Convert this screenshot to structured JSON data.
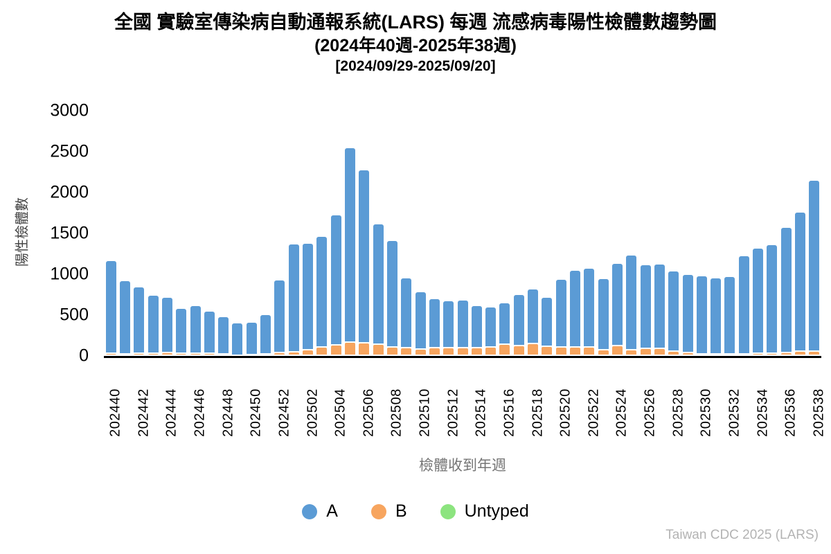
{
  "title": {
    "line1": "全國 實驗室傳染病自動通報系統(LARS) 每週 流感病毒陽性檢體數趨勢圖",
    "line2": "(2024年40週-2025年38週)",
    "line3": "[2024/09/29-2025/09/20]"
  },
  "footer": {
    "source": "Taiwan CDC 2025 (LARS)"
  },
  "chart_data": {
    "type": "bar",
    "stacked": true,
    "title": "全國 實驗室傳染病自動通報系統(LARS) 每週 流感病毒陽性檢體數趨勢圖 (2024年40週-2025年38週) [2024/09/29-2025/09/20]",
    "xlabel": "檢體收到年週",
    "ylabel": "陽性檢體數",
    "ylim": [
      0,
      3000
    ],
    "yticks": [
      0,
      500,
      1000,
      1500,
      2000,
      2500,
      3000
    ],
    "grid": false,
    "legend_position": "bottom",
    "x_tick_label_every": 2,
    "categories": [
      "202440",
      "202441",
      "202442",
      "202443",
      "202444",
      "202445",
      "202446",
      "202447",
      "202448",
      "202449",
      "202450",
      "202451",
      "202452",
      "202501",
      "202502",
      "202503",
      "202504",
      "202505",
      "202506",
      "202507",
      "202508",
      "202509",
      "202510",
      "202511",
      "202512",
      "202513",
      "202514",
      "202515",
      "202516",
      "202517",
      "202518",
      "202519",
      "202520",
      "202521",
      "202522",
      "202523",
      "202524",
      "202525",
      "202526",
      "202527",
      "202528",
      "202529",
      "202530",
      "202531",
      "202532",
      "202533",
      "202534",
      "202535",
      "202536",
      "202537",
      "202538"
    ],
    "series": [
      {
        "name": "A",
        "color": "#5b9bd5",
        "values": [
          1140,
          893,
          817,
          710,
          677,
          553,
          590,
          515,
          453,
          397,
          405,
          483,
          895,
          1320,
          1305,
          1355,
          1595,
          2385,
          2120,
          1475,
          1305,
          860,
          707,
          605,
          577,
          586,
          515,
          491,
          509,
          634,
          665,
          605,
          828,
          936,
          966,
          876,
          1016,
          1160,
          1031,
          1040,
          980,
          955,
          957,
          932,
          952,
          1207,
          1290,
          1330,
          1536,
          1707,
          2095
        ]
      },
      {
        "name": "B",
        "color": "#f7a55f",
        "values": [
          30,
          25,
          30,
          30,
          40,
          32,
          28,
          30,
          25,
          8,
          10,
          22,
          35,
          50,
          75,
          105,
          130,
          165,
          160,
          140,
          110,
          95,
          78,
          95,
          100,
          100,
          100,
          110,
          140,
          120,
          150,
          115,
          110,
          110,
          108,
          70,
          120,
          75,
          85,
          85,
          57,
          42,
          23,
          23,
          23,
          23,
          30,
          30,
          42,
          55,
          55
        ]
      },
      {
        "name": "Untyped",
        "color": "#8ce47f",
        "values": [
          0,
          0,
          0,
          0,
          0,
          0,
          0,
          0,
          0,
          0,
          0,
          0,
          0,
          0,
          0,
          0,
          0,
          0,
          0,
          0,
          0,
          0,
          0,
          0,
          0,
          0,
          0,
          0,
          0,
          0,
          0,
          0,
          0,
          0,
          0,
          0,
          0,
          0,
          0,
          0,
          0,
          0,
          0,
          0,
          0,
          0,
          0,
          0,
          0,
          0,
          0
        ]
      }
    ]
  },
  "layout_note": ""
}
